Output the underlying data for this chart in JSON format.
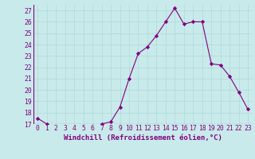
{
  "x": [
    0,
    1,
    2,
    3,
    4,
    5,
    6,
    7,
    8,
    9,
    10,
    11,
    12,
    13,
    14,
    15,
    16,
    17,
    18,
    19,
    20,
    21,
    22,
    23
  ],
  "y": [
    17.5,
    17.0,
    16.8,
    16.7,
    16.7,
    16.7,
    16.8,
    17.0,
    17.2,
    18.5,
    21.0,
    23.2,
    23.8,
    24.8,
    26.0,
    27.2,
    25.8,
    26.0,
    26.0,
    22.3,
    22.2,
    21.2,
    19.8,
    18.3
  ],
  "line_color": "#800080",
  "marker": "D",
  "marker_size": 2.2,
  "bg_color": "#c8eaea",
  "grid_color": "#b0d8d8",
  "xlabel": "Windchill (Refroidissement éolien,°C)",
  "xlim": [
    -0.5,
    23.5
  ],
  "ylim": [
    17,
    27.5
  ],
  "yticks": [
    17,
    18,
    19,
    20,
    21,
    22,
    23,
    24,
    25,
    26,
    27
  ],
  "xticks": [
    0,
    1,
    2,
    3,
    4,
    5,
    6,
    7,
    8,
    9,
    10,
    11,
    12,
    13,
    14,
    15,
    16,
    17,
    18,
    19,
    20,
    21,
    22,
    23
  ],
  "xlabel_fontsize": 6.5,
  "tick_fontsize": 5.8,
  "label_color": "#800080",
  "axis_label_color": "#800080",
  "grid_linewidth": 0.5,
  "line_width": 0.8
}
